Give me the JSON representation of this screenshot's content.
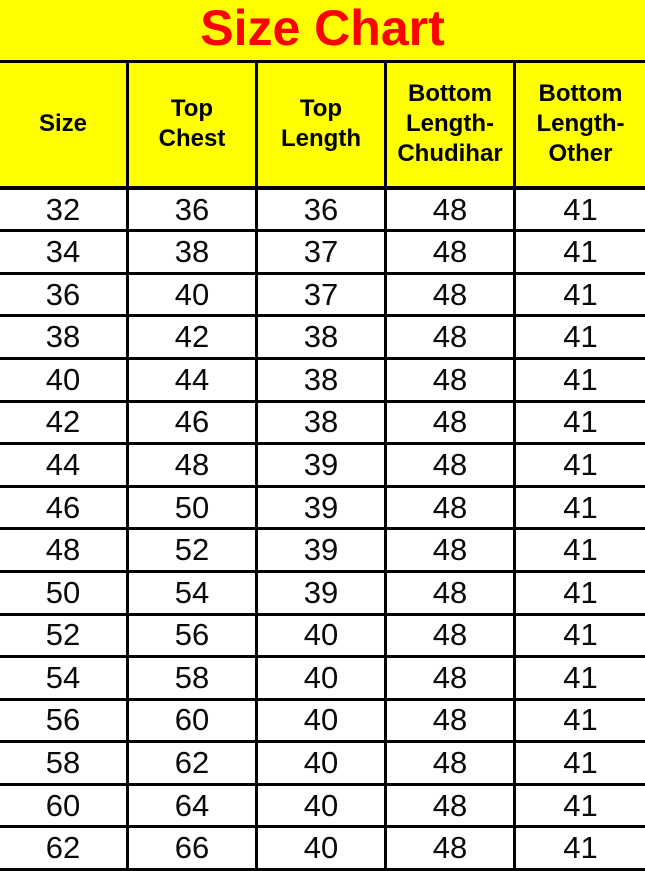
{
  "page": {
    "title": "Size Chart"
  },
  "colors": {
    "band_background": "#FFFF00",
    "title_text": "#FF0000",
    "header_text": "#000000",
    "border": "#000000",
    "row_background": "#FFFFFF",
    "data_text": "#0A0A0A"
  },
  "chart_data": {
    "type": "table",
    "title": "Size Chart",
    "columns": [
      "Size",
      "Top Chest",
      "Top Length",
      "Bottom Length-Chudihar",
      "Bottom Length-Other"
    ],
    "rows": [
      [
        "32",
        "36",
        "36",
        "48",
        "41"
      ],
      [
        "34",
        "38",
        "37",
        "48",
        "41"
      ],
      [
        "36",
        "40",
        "37",
        "48",
        "41"
      ],
      [
        "38",
        "42",
        "38",
        "48",
        "41"
      ],
      [
        "40",
        "44",
        "38",
        "48",
        "41"
      ],
      [
        "42",
        "46",
        "38",
        "48",
        "41"
      ],
      [
        "44",
        "48",
        "39",
        "48",
        "41"
      ],
      [
        "46",
        "50",
        "39",
        "48",
        "41"
      ],
      [
        "48",
        "52",
        "39",
        "48",
        "41"
      ],
      [
        "50",
        "54",
        "39",
        "48",
        "41"
      ],
      [
        "52",
        "56",
        "40",
        "48",
        "41"
      ],
      [
        "54",
        "58",
        "40",
        "48",
        "41"
      ],
      [
        "56",
        "60",
        "40",
        "48",
        "41"
      ],
      [
        "58",
        "62",
        "40",
        "48",
        "41"
      ],
      [
        "60",
        "64",
        "40",
        "48",
        "41"
      ],
      [
        "62",
        "66",
        "40",
        "48",
        "41"
      ]
    ]
  }
}
